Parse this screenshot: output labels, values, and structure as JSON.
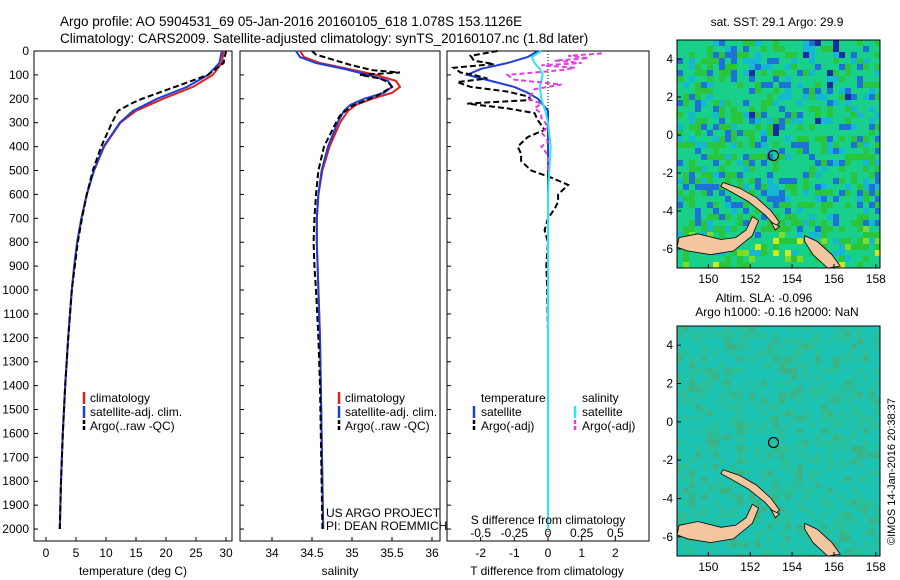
{
  "header": {
    "title_line1": "Argo profile: AO 5904531_69 05-Jan-2016 20160105_618 1.078S 153.1126E",
    "title_line2": "Climatology: CARS2009. Satellite-adjusted climatology: synTS_20160107.nc (1.8d later)"
  },
  "colors": {
    "climatology": "#e0201b",
    "satellite": "#1f3fd6",
    "argo": "#000000",
    "salinity_satellite": "#2ee6f0",
    "salinity_argo": "#e040e0",
    "land": "#f3c6a0"
  },
  "legend_tpanel": [
    "climatology",
    "satellite-adj. clim.",
    "Argo(..raw -QC)"
  ],
  "legend_spanel": [
    "climatology",
    "satellite-adj. clim.",
    "Argo(..raw -QC)"
  ],
  "legend_dpanel": {
    "temperature_title": "temperature",
    "salinity_title": "salinity",
    "rows": [
      "satellite",
      "Argo(-adj)",
      "satellite",
      "Argo(-adj)"
    ]
  },
  "credits": {
    "line1": "US ARGO PROJECT",
    "line2": "PI: DEAN ROEMMICH"
  },
  "depth_ticks": [
    "0",
    "100",
    "200",
    "300",
    "400",
    "500",
    "600",
    "700",
    "800",
    "900",
    "1000",
    "1100",
    "1200",
    "1300",
    "1400",
    "1500",
    "1600",
    "1700",
    "1800",
    "1900",
    "2000"
  ],
  "map_top": {
    "title": "sat. SST: 29.1 Argo: 29.9"
  },
  "map_bottom": {
    "title_line1": "Altim. SLA: -0.096",
    "title_line2": "Argo h1000: -0.16 h2000: NaN"
  },
  "map_x_ticks": [
    "150",
    "152",
    "154",
    "156",
    "158"
  ],
  "map_y_ticks": [
    "4",
    "2",
    "0",
    "-2",
    "-4",
    "-6"
  ],
  "map_x_values": [
    150,
    152,
    154,
    156,
    158
  ],
  "map_y_values": [
    4,
    2,
    0,
    -2,
    -4,
    -6
  ],
  "imos_stamp": "©IMOS 14-Jan-2016 20:38:37",
  "chart_data": [
    {
      "type": "line",
      "xlabel": "temperature (deg C)",
      "ylabel": "",
      "xlim": [
        -2,
        31
      ],
      "ylim": [
        2050,
        0
      ],
      "x_ticks": [
        "0",
        "5",
        "10",
        "15",
        "20",
        "25",
        "30"
      ],
      "x_tick_values": [
        0,
        5,
        10,
        15,
        20,
        25,
        30
      ],
      "legend_position": "bottom-left",
      "series": [
        {
          "name": "climatology",
          "depth": [
            0,
            50,
            100,
            150,
            200,
            250,
            300,
            400,
            500,
            600,
            700,
            800,
            900,
            1000,
            1200,
            1400,
            1600,
            1800,
            2000
          ],
          "values": [
            29.6,
            29.3,
            27.8,
            24.5,
            19.5,
            15,
            12.4,
            9.7,
            8.0,
            6.8,
            5.9,
            5.2,
            4.7,
            4.3,
            3.7,
            3.2,
            2.8,
            2.5,
            2.3
          ]
        },
        {
          "name": "satellite-adj. clim.",
          "depth": [
            0,
            50,
            100,
            150,
            200,
            250,
            300,
            400,
            500,
            600,
            700,
            800,
            900,
            1000,
            1200,
            1400,
            1600,
            1800,
            2000
          ],
          "values": [
            29.3,
            28.9,
            27.0,
            23.5,
            18.5,
            14.5,
            12.3,
            9.6,
            8.0,
            6.8,
            5.9,
            5.2,
            4.7,
            4.3,
            3.7,
            3.2,
            2.8,
            2.5,
            2.3
          ]
        },
        {
          "name": "Argo(..raw -QC)",
          "depth": [
            0,
            50,
            100,
            150,
            200,
            220,
            250,
            280,
            300,
            400,
            500,
            600,
            700,
            800,
            900,
            1000,
            1200,
            1400,
            1600,
            1800,
            2000
          ],
          "values": [
            30.0,
            29.6,
            27.0,
            21.5,
            16.0,
            14.2,
            12.0,
            11.4,
            11.0,
            9.2,
            7.8,
            6.8,
            6.0,
            5.3,
            4.8,
            4.3,
            3.7,
            3.2,
            2.8,
            2.5,
            2.3
          ]
        }
      ]
    },
    {
      "type": "line",
      "xlabel": "salinity",
      "ylabel": "",
      "xlim": [
        33.6,
        36.1
      ],
      "ylim": [
        2050,
        0
      ],
      "x_ticks": [
        "34",
        "34.5",
        "35",
        "35.5",
        "36"
      ],
      "x_tick_values": [
        34,
        34.5,
        35,
        35.5,
        36
      ],
      "legend_position": "bottom-right",
      "series": [
        {
          "name": "climatology",
          "depth": [
            0,
            25,
            50,
            75,
            100,
            125,
            150,
            175,
            200,
            225,
            250,
            300,
            400,
            500,
            600,
            700,
            800,
            1000,
            1200,
            1400,
            1600,
            1800,
            2000
          ],
          "values": [
            34.35,
            34.4,
            34.6,
            34.95,
            35.3,
            35.55,
            35.6,
            35.5,
            35.25,
            35.05,
            34.95,
            34.85,
            34.72,
            34.63,
            34.58,
            34.56,
            34.56,
            34.58,
            34.6,
            34.61,
            34.62,
            34.63,
            34.64
          ]
        },
        {
          "name": "satellite-adj. clim.",
          "depth": [
            0,
            25,
            50,
            75,
            100,
            125,
            150,
            175,
            200,
            225,
            250,
            300,
            400,
            500,
            600,
            700,
            800,
            1000,
            1200,
            1400,
            1600,
            1800,
            2000
          ],
          "values": [
            34.3,
            34.35,
            34.55,
            34.9,
            35.2,
            35.45,
            35.5,
            35.4,
            35.15,
            34.98,
            34.9,
            34.82,
            34.7,
            34.62,
            34.58,
            34.56,
            34.56,
            34.58,
            34.6,
            34.61,
            34.62,
            34.63,
            34.64
          ]
        },
        {
          "name": "Argo(..raw -QC)",
          "depth": [
            0,
            15,
            30,
            45,
            60,
            80,
            90,
            100,
            115,
            130,
            150,
            170,
            190,
            210,
            230,
            250,
            270,
            300,
            400,
            500,
            600,
            700,
            800,
            900,
            1000,
            1200,
            1400,
            1600,
            1800,
            2000
          ],
          "values": [
            34.5,
            34.55,
            34.7,
            34.85,
            35.0,
            35.25,
            35.6,
            35.1,
            35.35,
            35.45,
            35.5,
            35.4,
            35.3,
            35.15,
            35.0,
            34.92,
            34.85,
            34.8,
            34.65,
            34.58,
            34.55,
            34.53,
            34.52,
            34.53,
            34.55,
            34.58,
            34.6,
            34.61,
            34.62,
            34.63
          ]
        }
      ]
    },
    {
      "type": "line",
      "xlabel": "T difference from climatology",
      "x2label": "S difference from climatology",
      "ylabel": "",
      "xlim": [
        -3,
        3
      ],
      "ylim": [
        2050,
        0
      ],
      "x_ticks": [
        "-2",
        "-1",
        "0",
        "1",
        "2"
      ],
      "x_tick_values": [
        -2,
        -1,
        0,
        1,
        2
      ],
      "x2_ticks": [
        "-0.5",
        "-0.25",
        "0",
        "0.25",
        "0.5"
      ],
      "x2_tick_values": [
        -0.5,
        -0.25,
        0,
        0.25,
        0.5
      ],
      "x2lim": [
        -0.75,
        0.75
      ],
      "legend_position": "bottom",
      "series": [
        {
          "name": "temperature satellite",
          "depth": [
            0,
            25,
            50,
            75,
            100,
            125,
            150,
            175,
            200,
            250,
            300,
            400,
            500,
            600,
            700,
            800,
            1000,
            1500,
            2000
          ],
          "values": [
            -0.3,
            -0.6,
            -1.2,
            -2.0,
            -2.4,
            -1.7,
            -1.0,
            -0.6,
            -0.3,
            0.0,
            0.0,
            0.0,
            0.0,
            0.0,
            0.0,
            0.0,
            0.0,
            0.0,
            0.0
          ]
        },
        {
          "name": "temperature Argo(-adj)",
          "depth": [
            0,
            20,
            40,
            55,
            70,
            90,
            100,
            115,
            130,
            150,
            170,
            190,
            205,
            220,
            240,
            260,
            290,
            310,
            330,
            360,
            400,
            430,
            460,
            500,
            530,
            560,
            600,
            630,
            660,
            700,
            750,
            800,
            900,
            1000,
            1200,
            1500,
            2000
          ],
          "values": [
            -1.5,
            -2.3,
            -2.2,
            -1.6,
            -2.8,
            -2.6,
            -2.2,
            -1.8,
            -2.7,
            -2.3,
            -1.2,
            -0.6,
            -0.5,
            -2.4,
            -1.2,
            -0.4,
            -0.3,
            -0.2,
            -0.1,
            -0.6,
            -0.9,
            -0.8,
            -0.8,
            -0.5,
            0.1,
            0.6,
            0.3,
            0.3,
            0.2,
            0.0,
            -0.1,
            0.0,
            -0.05,
            -0.02,
            0.0,
            0.0,
            0.0
          ]
        },
        {
          "name": "salinity satellite",
          "depth": [
            0,
            25,
            50,
            75,
            100,
            150,
            200,
            250,
            300,
            400,
            500,
            600,
            800,
            1000,
            1500,
            2000
          ],
          "values": [
            -0.05,
            -0.12,
            -0.1,
            -0.06,
            -0.04,
            -0.06,
            -0.05,
            -0.02,
            0.0,
            0.02,
            0.01,
            0.0,
            0.0,
            0.0,
            0.0,
            0.0
          ]
        },
        {
          "name": "salinity Argo(-adj)",
          "depth": [
            10,
            20,
            30,
            40,
            50,
            60,
            70,
            80,
            90,
            100,
            120,
            140,
            160,
            180,
            200,
            220,
            240,
            260,
            280,
            300,
            320,
            340,
            360,
            380,
            400,
            420,
            440,
            460,
            480,
            500
          ],
          "values": [
            0.4,
            0.15,
            0.3,
            0.05,
            0.25,
            -0.05,
            0.2,
            0.1,
            -0.1,
            -0.3,
            -0.25,
            0.1,
            -0.1,
            -0.12,
            -0.15,
            -0.05,
            -0.1,
            -0.05,
            -0.05,
            -0.02,
            0.0,
            -0.05,
            -0.02,
            0.0,
            -0.05,
            -0.02,
            0.0,
            0.0,
            0.0,
            0.0
          ]
        }
      ]
    },
    {
      "type": "heatmap",
      "title": "sat. SST: 29.1 Argo: 29.9",
      "xlim": [
        148.5,
        158.2
      ],
      "ylim": [
        -7,
        5
      ],
      "argo_position": [
        153.11,
        -1.08
      ],
      "colorscale": [
        "#15b7d4",
        "#18d08a",
        "#29c53c",
        "#7fdc24",
        "#cfe81a",
        "#1e72d6",
        "#1a2e9c",
        "#ffffff"
      ],
      "cell_value_range": [
        0,
        9
      ]
    },
    {
      "type": "heatmap",
      "title": "Altim. SLA: -0.096",
      "subtitle": "Argo h1000: -0.16 h2000: NaN",
      "xlim": [
        148.5,
        158.2
      ],
      "ylim": [
        -7,
        5
      ],
      "argo_position": [
        153.11,
        -1.08
      ],
      "colorscale": [
        "#1cc3b3",
        "#28bf9a",
        "#3ab486"
      ]
    }
  ]
}
